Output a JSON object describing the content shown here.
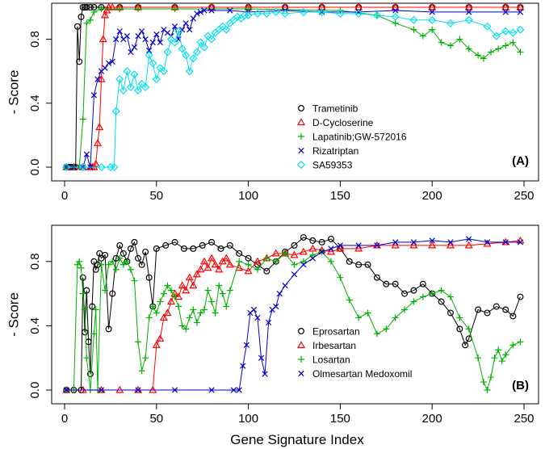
{
  "chart_data": [
    {
      "type": "scatter",
      "panel_label": "(A)",
      "ylabel": "- Score",
      "xlabel": "",
      "xlim": [
        0,
        250
      ],
      "ylim": [
        0,
        1
      ],
      "x_ticks": [
        0,
        50,
        100,
        150,
        200,
        250
      ],
      "y_ticks": [
        0.0,
        0.4,
        0.8
      ],
      "y_tick_labels": [
        "0.0",
        "0.4",
        "0.8"
      ],
      "legend_position": "center-right",
      "series": [
        {
          "name": "Trametinib",
          "color": "#000000",
          "marker": "circle",
          "x": [
            1,
            2,
            3,
            4,
            5,
            6,
            7,
            8,
            9,
            10,
            11,
            12,
            14,
            16,
            20,
            30,
            40,
            60,
            80,
            100,
            120,
            140,
            160,
            180,
            200,
            220,
            240,
            248
          ],
          "values": [
            0,
            0,
            0,
            0,
            0,
            0,
            0.88,
            0.66,
            0.94,
            1,
            1,
            1,
            1,
            1,
            1,
            1,
            1,
            1,
            1,
            1,
            1,
            1,
            1,
            1,
            1,
            1,
            1,
            1
          ]
        },
        {
          "name": "D-Cycloserine",
          "color": "#ff0000",
          "marker": "triangle",
          "x": [
            1,
            5,
            10,
            14,
            15,
            16,
            17,
            18,
            19,
            20,
            21,
            22,
            23,
            24,
            26,
            30,
            40,
            60,
            80,
            100,
            120,
            140,
            160,
            180,
            200,
            220,
            240,
            248
          ],
          "values": [
            0,
            0,
            0,
            0,
            0,
            0,
            0.02,
            0.15,
            0.25,
            0.55,
            0.8,
            0.95,
            0.98,
            1,
            1,
            1,
            1,
            1,
            1,
            1,
            1,
            1,
            1,
            1,
            1,
            1,
            1,
            1
          ]
        },
        {
          "name": "Lapatinib;GW-572016",
          "color": "#00b000",
          "marker": "plus",
          "x": [
            1,
            5,
            8,
            10,
            12,
            14,
            16,
            20,
            30,
            40,
            60,
            100,
            150,
            170,
            180,
            190,
            195,
            200,
            205,
            210,
            215,
            220,
            225,
            228,
            232,
            236,
            240,
            244,
            248
          ],
          "values": [
            0,
            0,
            0,
            0.3,
            0.9,
            0.92,
            0.97,
            0.99,
            0.99,
            0.99,
            0.99,
            0.99,
            0.98,
            0.95,
            0.9,
            0.86,
            0.82,
            0.86,
            0.78,
            0.76,
            0.8,
            0.74,
            0.7,
            0.68,
            0.72,
            0.74,
            0.76,
            0.78,
            0.72
          ]
        },
        {
          "name": "Rizatriptan",
          "color": "#0000cc",
          "marker": "cross",
          "x": [
            1,
            5,
            10,
            12,
            14,
            16,
            18,
            20,
            22,
            24,
            26,
            28,
            30,
            32,
            34,
            36,
            38,
            40,
            42,
            44,
            46,
            48,
            50,
            52,
            54,
            56,
            58,
            60,
            62,
            64,
            66,
            68,
            70,
            72,
            74,
            76,
            80,
            90,
            100,
            120,
            140,
            160,
            180,
            200,
            220,
            240,
            248
          ],
          "values": [
            0,
            0,
            0,
            0.08,
            0,
            0.45,
            0.55,
            0.6,
            0.62,
            0.65,
            0.66,
            0.8,
            0.85,
            0.8,
            0.82,
            0.72,
            0.75,
            0.82,
            0.85,
            0.8,
            0.73,
            0.78,
            0.83,
            0.78,
            0.86,
            0.84,
            0.82,
            0.88,
            0.8,
            0.86,
            0.9,
            0.86,
            0.93,
            0.96,
            0.97,
            0.98,
            0.98,
            0.98,
            0.97,
            0.98,
            0.97,
            0.97,
            0.98,
            0.97,
            0.97,
            0.97,
            0.97
          ]
        },
        {
          "name": "SA59353",
          "color": "#00e0ee",
          "marker": "diamond",
          "x": [
            1,
            10,
            20,
            25,
            27,
            28,
            30,
            32,
            34,
            36,
            38,
            40,
            42,
            44,
            46,
            48,
            50,
            52,
            54,
            56,
            58,
            60,
            62,
            64,
            66,
            68,
            70,
            72,
            74,
            76,
            78,
            80,
            82,
            84,
            86,
            88,
            90,
            92,
            94,
            96,
            98,
            100,
            105,
            110,
            115,
            120,
            130,
            140,
            150,
            160,
            170,
            180,
            190,
            200,
            210,
            220,
            230,
            235,
            240,
            244,
            248
          ],
          "values": [
            0,
            0,
            0,
            0,
            0,
            0.35,
            0.55,
            0.48,
            0.6,
            0.5,
            0.58,
            0.48,
            0.52,
            0.5,
            0.7,
            0.65,
            0.55,
            0.62,
            0.6,
            0.72,
            0.8,
            0.78,
            0.85,
            0.74,
            0.7,
            0.6,
            0.68,
            0.72,
            0.78,
            0.75,
            0.82,
            0.8,
            0.84,
            0.86,
            0.88,
            0.86,
            0.9,
            0.92,
            0.94,
            0.93,
            0.95,
            0.95,
            0.96,
            0.96,
            0.97,
            0.96,
            0.97,
            0.97,
            0.96,
            0.96,
            0.95,
            0.94,
            0.92,
            0.92,
            0.9,
            0.92,
            0.88,
            0.82,
            0.85,
            0.84,
            0.86
          ]
        }
      ]
    },
    {
      "type": "scatter",
      "panel_label": "(B)",
      "ylabel": "- Score",
      "xlabel": "Gene Signature Index",
      "xlim": [
        0,
        250
      ],
      "ylim": [
        0,
        1
      ],
      "x_ticks": [
        0,
        50,
        100,
        150,
        200,
        250
      ],
      "y_ticks": [
        0.0,
        0.4,
        0.8
      ],
      "y_tick_labels": [
        "0.0",
        "0.4",
        "0.8"
      ],
      "legend_position": "center-right",
      "series": [
        {
          "name": "Eprosartan",
          "color": "#000000",
          "marker": "circle",
          "x": [
            1,
            5,
            9,
            10,
            11,
            12,
            13,
            14,
            15,
            16,
            17,
            18,
            19,
            20,
            22,
            24,
            26,
            28,
            30,
            32,
            34,
            36,
            38,
            40,
            42,
            44,
            46,
            48,
            50,
            55,
            60,
            65,
            70,
            75,
            80,
            85,
            90,
            95,
            100,
            105,
            110,
            115,
            120,
            125,
            130,
            135,
            140,
            145,
            150,
            155,
            160,
            165,
            170,
            175,
            180,
            185,
            190,
            195,
            200,
            205,
            210,
            215,
            218,
            220,
            225,
            230,
            235,
            240,
            244,
            248
          ],
          "values": [
            0,
            0,
            0,
            0.7,
            0.36,
            0.62,
            0.3,
            0.1,
            0.52,
            0.8,
            0.75,
            0.78,
            0.85,
            0.82,
            0.84,
            0.38,
            0.6,
            0.82,
            0.9,
            0.85,
            0.8,
            0.88,
            0.92,
            0.82,
            0.78,
            0.86,
            0.7,
            0.52,
            0.88,
            0.9,
            0.92,
            0.88,
            0.88,
            0.9,
            0.92,
            0.88,
            0.9,
            0.85,
            0.82,
            0.78,
            0.74,
            0.8,
            0.86,
            0.9,
            0.95,
            0.93,
            0.92,
            0.94,
            0.88,
            0.8,
            0.78,
            0.78,
            0.7,
            0.66,
            0.66,
            0.6,
            0.62,
            0.66,
            0.6,
            0.55,
            0.48,
            0.38,
            0.28,
            0.32,
            0.5,
            0.48,
            0.52,
            0.5,
            0.46,
            0.58
          ]
        },
        {
          "name": "Irbesartan",
          "color": "#ff0000",
          "marker": "triangle",
          "x": [
            1,
            10,
            20,
            30,
            40,
            48,
            50,
            52,
            54,
            56,
            58,
            60,
            62,
            64,
            66,
            68,
            70,
            72,
            74,
            76,
            78,
            80,
            82,
            84,
            86,
            88,
            90,
            95,
            100,
            105,
            110,
            115,
            120,
            125,
            130,
            135,
            140,
            145,
            150,
            160,
            170,
            180,
            190,
            200,
            210,
            220,
            230,
            240,
            248
          ],
          "values": [
            0,
            0,
            0,
            0,
            0,
            0,
            0.28,
            0.32,
            0.45,
            0.48,
            0.55,
            0.6,
            0.58,
            0.65,
            0.62,
            0.7,
            0.65,
            0.72,
            0.75,
            0.8,
            0.76,
            0.82,
            0.78,
            0.75,
            0.8,
            0.82,
            0.78,
            0.76,
            0.74,
            0.8,
            0.82,
            0.85,
            0.85,
            0.84,
            0.86,
            0.88,
            0.87,
            0.86,
            0.88,
            0.88,
            0.9,
            0.9,
            0.9,
            0.9,
            0.9,
            0.9,
            0.91,
            0.92,
            0.93
          ]
        },
        {
          "name": "Losartan",
          "color": "#00b000",
          "marker": "plus",
          "x": [
            1,
            5,
            7,
            8,
            9,
            10,
            11,
            12,
            14,
            16,
            17,
            18,
            20,
            22,
            24,
            26,
            28,
            30,
            32,
            34,
            36,
            38,
            40,
            42,
            44,
            46,
            48,
            50,
            52,
            54,
            56,
            58,
            60,
            62,
            64,
            66,
            68,
            70,
            72,
            74,
            76,
            78,
            80,
            82,
            84,
            86,
            88,
            90,
            95,
            100,
            105,
            110,
            115,
            120,
            125,
            130,
            135,
            140,
            145,
            150,
            155,
            160,
            165,
            170,
            175,
            180,
            185,
            190,
            195,
            200,
            205,
            210,
            215,
            220,
            225,
            228,
            230,
            232,
            234,
            236,
            238,
            240,
            244,
            248
          ],
          "values": [
            0,
            0,
            0.78,
            0.8,
            0.76,
            0.6,
            0.5,
            0.2,
            0,
            0.35,
            0.5,
            0,
            0.78,
            0.62,
            0.78,
            0.8,
            0.75,
            0.82,
            0.78,
            0.8,
            0.75,
            0.68,
            0.3,
            0.12,
            0.2,
            0.45,
            0.52,
            0.48,
            0.55,
            0.6,
            0.65,
            0.62,
            0.58,
            0.52,
            0.4,
            0.38,
            0.45,
            0.5,
            0.42,
            0.48,
            0.5,
            0.62,
            0.55,
            0.48,
            0.65,
            0.6,
            0.52,
            0.62,
            0.8,
            0.78,
            0.75,
            0.82,
            0.8,
            0.85,
            0.78,
            0.8,
            0.84,
            0.86,
            0.8,
            0.7,
            0.56,
            0.45,
            0.48,
            0.35,
            0.38,
            0.45,
            0.5,
            0.55,
            0.58,
            0.6,
            0.62,
            0.58,
            0.45,
            0.38,
            0.2,
            0.05,
            0.0,
            0.08,
            0.2,
            0.25,
            0.18,
            0.22,
            0.28,
            0.3
          ]
        },
        {
          "name": "Olmesartan Medoxomil",
          "color": "#0000cc",
          "marker": "cross",
          "x": [
            1,
            20,
            40,
            60,
            80,
            92,
            95,
            97,
            99,
            101,
            103,
            105,
            107,
            109,
            111,
            113,
            115,
            117,
            120,
            125,
            130,
            135,
            140,
            145,
            150,
            160,
            170,
            180,
            190,
            200,
            210,
            220,
            230,
            240,
            248
          ],
          "values": [
            0,
            0,
            0,
            0,
            0,
            0,
            0,
            0.15,
            0.28,
            0.48,
            0.5,
            0.45,
            0.2,
            0.1,
            0.42,
            0.5,
            0.52,
            0.6,
            0.65,
            0.72,
            0.78,
            0.82,
            0.86,
            0.88,
            0.9,
            0.9,
            0.9,
            0.92,
            0.92,
            0.93,
            0.92,
            0.94,
            0.92,
            0.92,
            0.92
          ]
        }
      ]
    }
  ]
}
